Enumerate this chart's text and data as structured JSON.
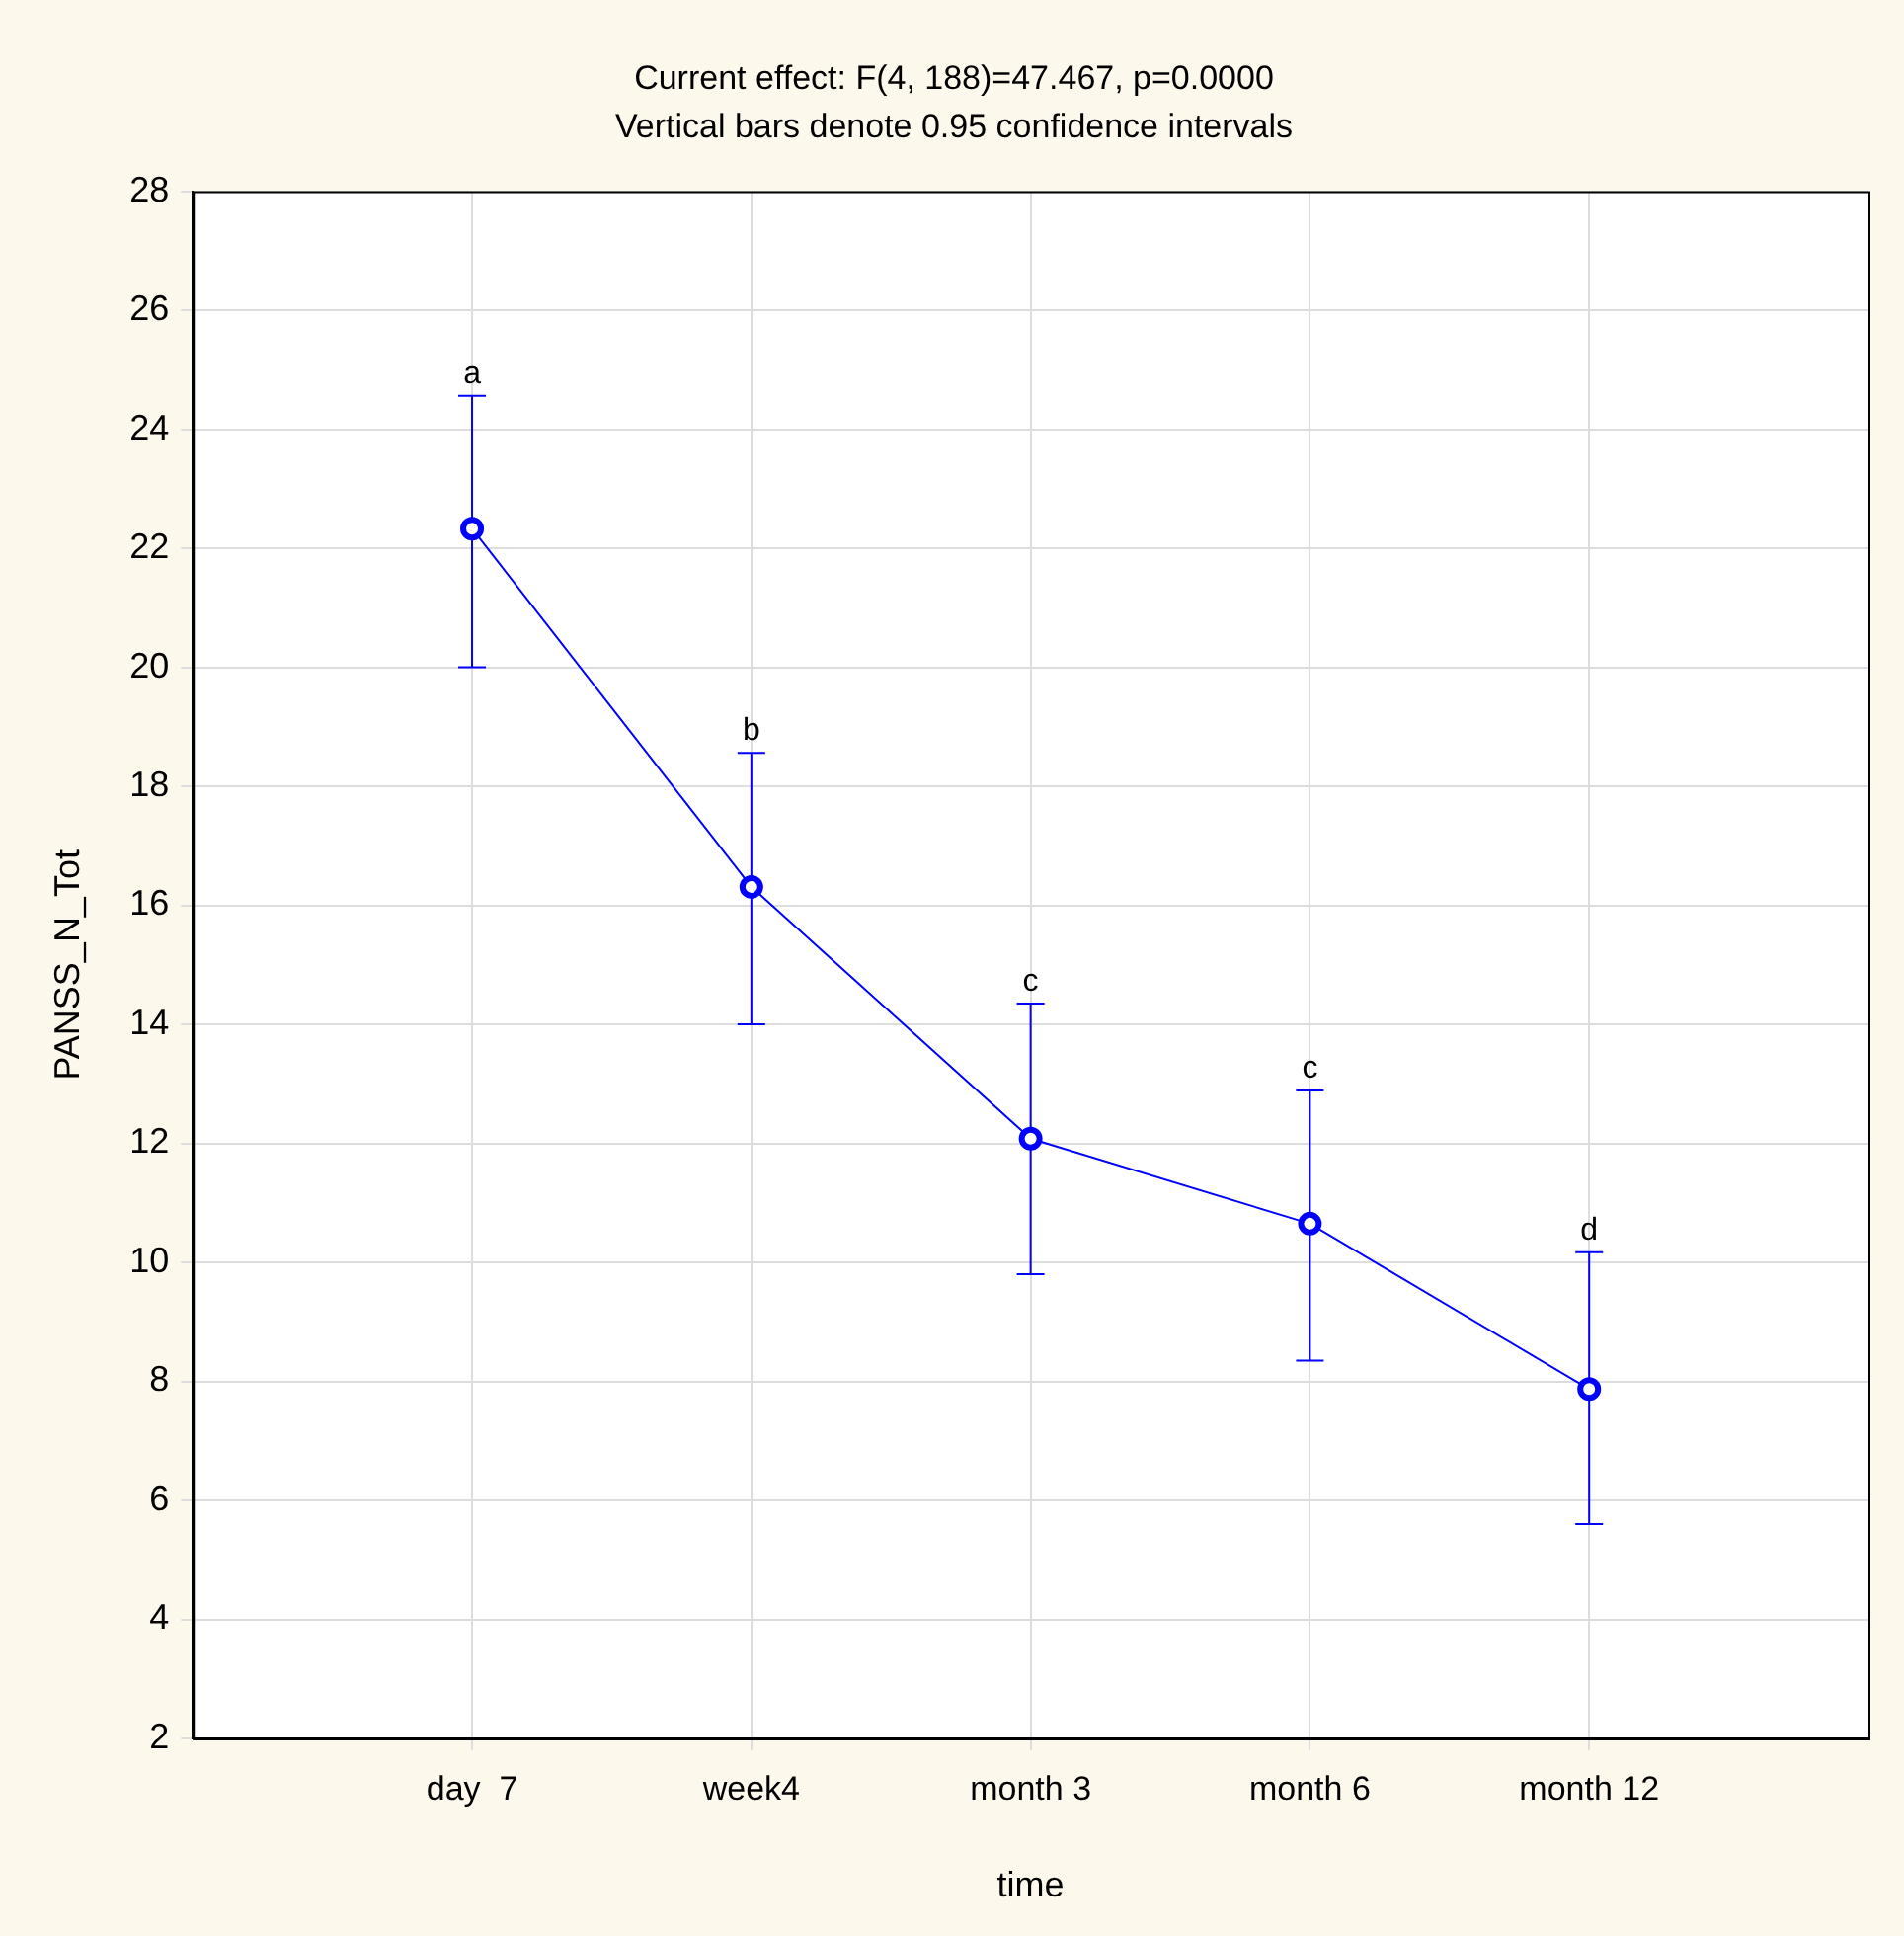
{
  "chart_data": {
    "type": "line",
    "title": "Current effect: F(4, 188)=47.467, p=0.0000",
    "subtitle": "Vertical bars denote 0.95 confidence intervals",
    "xlabel": "time",
    "ylabel": "PANSS_N_Tot",
    "categories": [
      "day  7",
      "week4",
      "month 3",
      "month 6",
      "month 12"
    ],
    "series": [
      {
        "color": "#0000ff",
        "values": [
          22.33,
          16.31,
          12.08,
          10.65,
          7.87
        ],
        "errors": [
          [
            20.0,
            24.56
          ],
          [
            14.0,
            18.56
          ],
          [
            9.8,
            14.35
          ],
          [
            8.35,
            12.89
          ],
          [
            5.6,
            10.17
          ]
        ]
      }
    ],
    "annotations": [
      {
        "text": "a",
        "x": "day  7",
        "y": 24.56
      },
      {
        "text": "b",
        "x": "week4",
        "y": 18.56
      },
      {
        "text": "c",
        "x": "month 3",
        "y": 14.35
      },
      {
        "text": "c",
        "x": "month 6",
        "y": 12.89
      },
      {
        "text": "d",
        "x": "month 12",
        "y": 10.17
      }
    ],
    "ylim": [
      2,
      28
    ],
    "yticks": [
      2,
      4,
      6,
      8,
      10,
      12,
      14,
      16,
      18,
      20,
      22,
      24,
      26,
      28
    ],
    "grid": true,
    "legend": false,
    "marker": "circle",
    "line_style": "solid"
  }
}
